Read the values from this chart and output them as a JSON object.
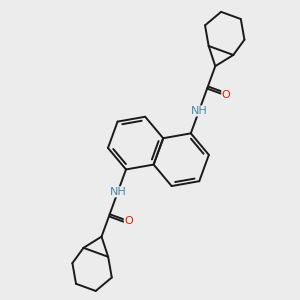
{
  "bg_color": "#ececec",
  "bond_color": "#1a1a1a",
  "N_color": "#4488aa",
  "O_color": "#dd2200",
  "bond_width": 1.4,
  "font_size": 8,
  "figsize": [
    3.0,
    3.0
  ],
  "dpi": 100,
  "xlim": [
    -4.5,
    4.5
  ],
  "ylim": [
    -5.5,
    5.0
  ]
}
